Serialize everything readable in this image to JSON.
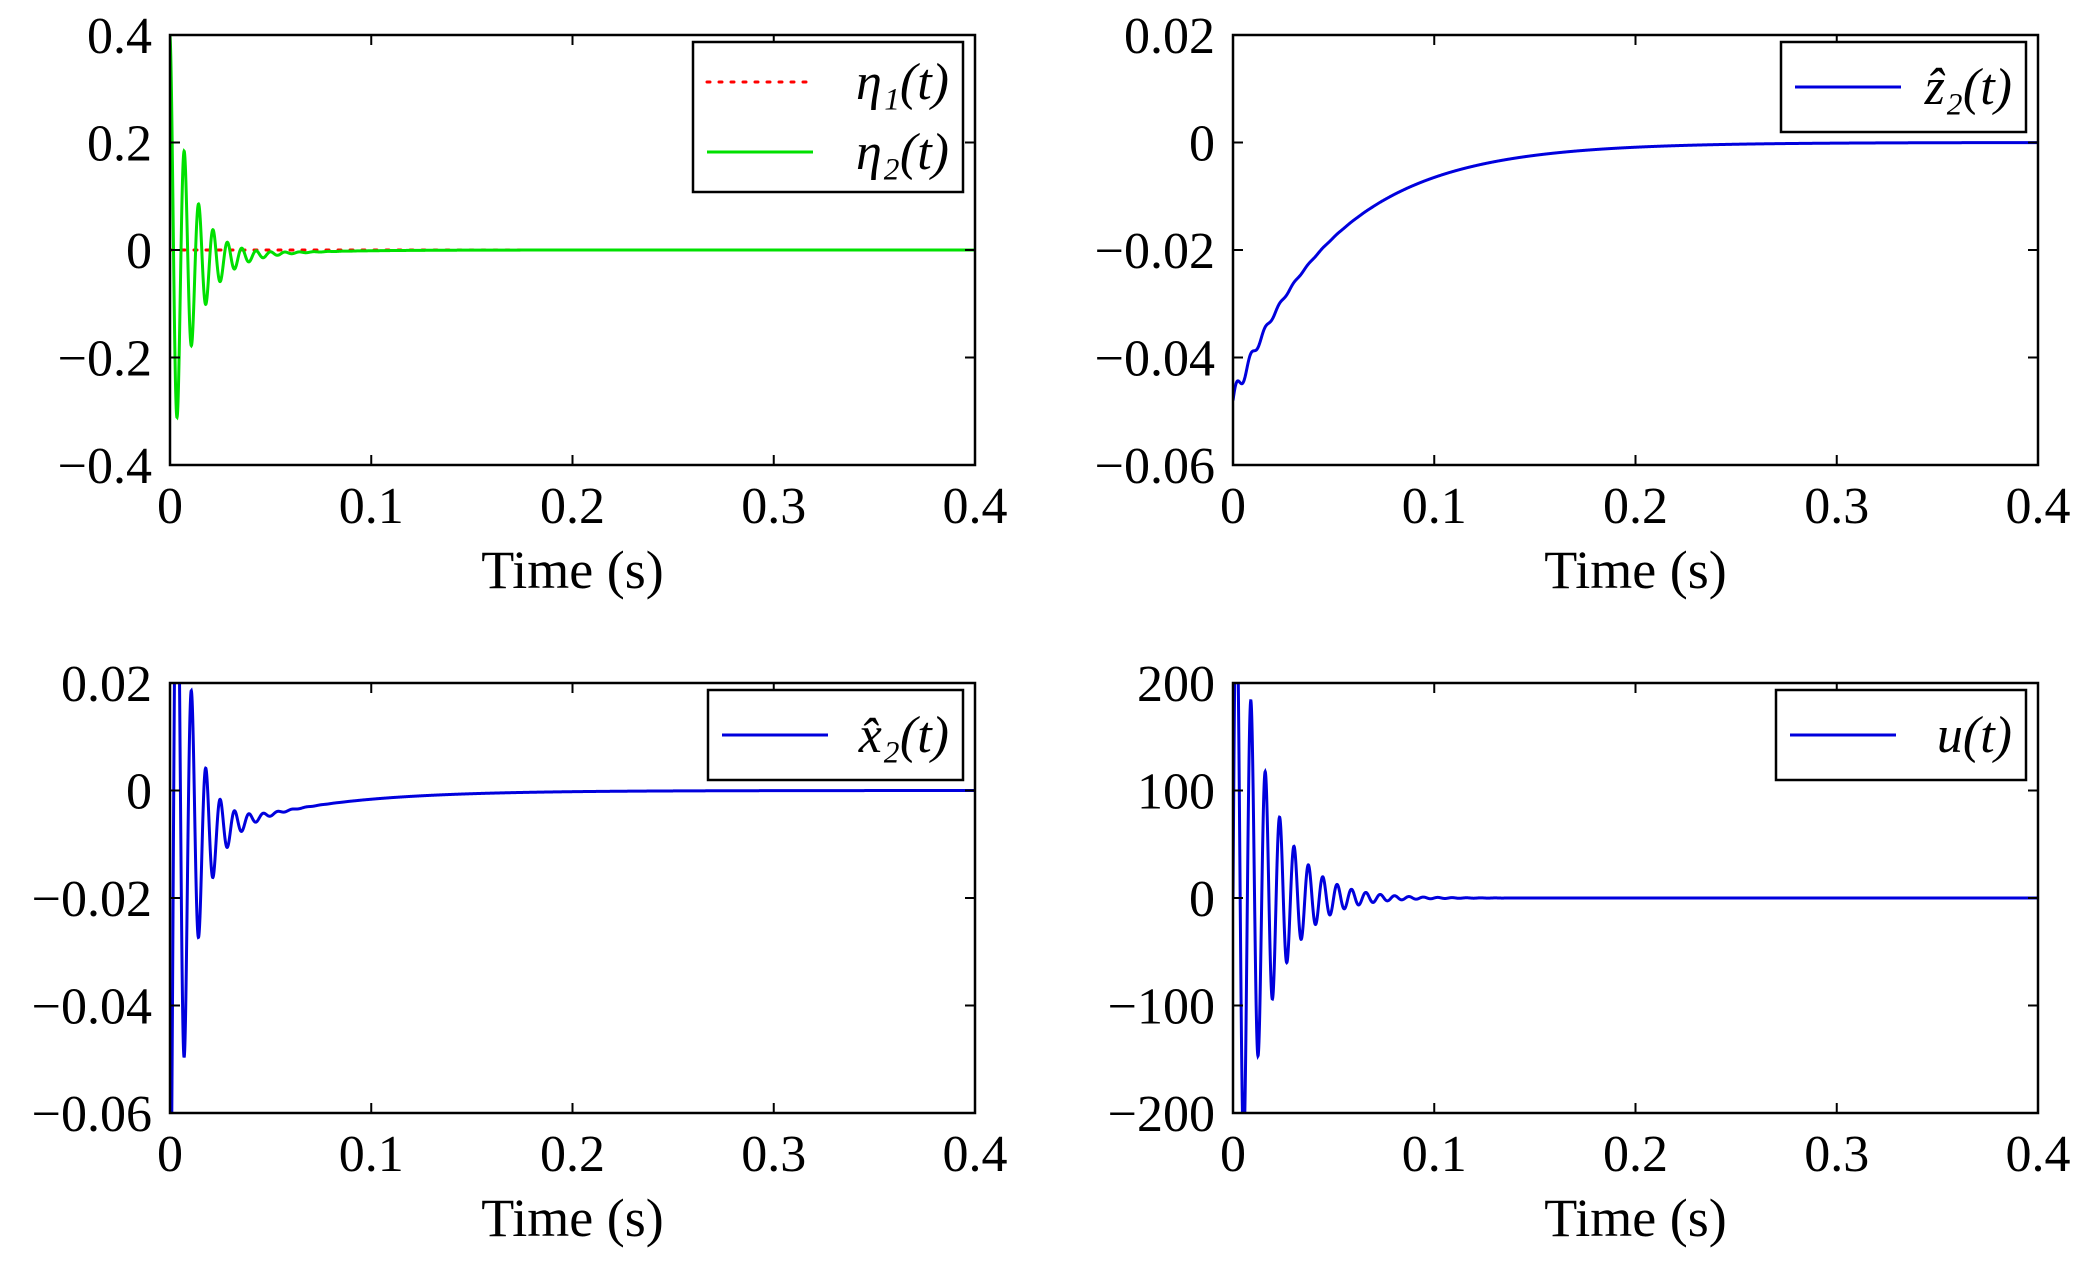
{
  "figure": {
    "background": "#ffffff"
  },
  "chart_data": [
    {
      "id": "eta",
      "type": "line",
      "title": "",
      "xlabel": "Time (s)",
      "ylabel": "",
      "xlim": [
        0,
        0.4
      ],
      "ylim": [
        -0.4,
        0.4
      ],
      "xticks": [
        0,
        0.1,
        0.2,
        0.3,
        0.4
      ],
      "xtick_labels": [
        "0",
        "0.1",
        "0.2",
        "0.3",
        "0.4"
      ],
      "yticks": [
        0.4,
        0.2,
        0,
        -0.2,
        -0.4
      ],
      "ytick_labels": [
        "0.4",
        "0.2",
        "0",
        "−0.2",
        "−0.4"
      ],
      "grid": false,
      "legend_position": "top-right",
      "series": [
        {
          "name": "η₁(t)",
          "color": "#ff0000",
          "style": "dotted",
          "model": {
            "kind": "decay",
            "a0": 0.0,
            "tau": 0.04
          }
        },
        {
          "name": "η₂(t)",
          "color": "#00e000",
          "style": "solid",
          "model": {
            "kind": "osc",
            "a0": 0.4,
            "tau": 0.011,
            "freq": 140,
            "offset_amp": -0.04,
            "offset_tau": 0.03
          }
        }
      ]
    },
    {
      "id": "z2hat",
      "type": "line",
      "title": "",
      "xlabel": "Time (s)",
      "ylabel": "",
      "xlim": [
        0,
        0.4
      ],
      "ylim": [
        -0.06,
        0.02
      ],
      "xticks": [
        0,
        0.1,
        0.2,
        0.3,
        0.4
      ],
      "xtick_labels": [
        "0",
        "0.1",
        "0.2",
        "0.3",
        "0.4"
      ],
      "yticks": [
        0.02,
        0,
        -0.02,
        -0.04,
        -0.06
      ],
      "ytick_labels": [
        "0.02",
        "0",
        "−0.02",
        "−0.04",
        "−0.06"
      ],
      "grid": false,
      "legend_position": "top-right",
      "series": [
        {
          "name": "ẑ₂(t)",
          "color": "#0000dd",
          "style": "solid",
          "model": {
            "kind": "decay_ripple",
            "a0": -0.048,
            "tau": 0.05,
            "ripple": 0.002,
            "ripple_tau": 0.012,
            "freq": 140
          }
        }
      ]
    },
    {
      "id": "x2hat",
      "type": "line",
      "title": "",
      "xlabel": "Time (s)",
      "ylabel": "",
      "xlim": [
        0,
        0.4
      ],
      "ylim": [
        -0.06,
        0.02
      ],
      "xticks": [
        0,
        0.1,
        0.2,
        0.3,
        0.4
      ],
      "xtick_labels": [
        "0",
        "0.1",
        "0.2",
        "0.3",
        "0.4"
      ],
      "yticks": [
        0.02,
        0,
        -0.02,
        -0.04,
        -0.06
      ],
      "ytick_labels": [
        "0.02",
        "0",
        "−0.02",
        "−0.04",
        "−0.06"
      ],
      "grid": false,
      "legend_position": "top-right",
      "series": [
        {
          "name": "x̂₂(t)",
          "color": "#0000dd",
          "style": "solid",
          "model": {
            "kind": "osc",
            "a0": -0.09,
            "tau": 0.009,
            "freq": 140,
            "offset_amp": -0.012,
            "offset_tau": 0.05
          }
        }
      ]
    },
    {
      "id": "u",
      "type": "line",
      "title": "",
      "xlabel": "Time (s)",
      "ylabel": "",
      "xlim": [
        0,
        0.4
      ],
      "ylim": [
        -200,
        200
      ],
      "xticks": [
        0,
        0.1,
        0.2,
        0.3,
        0.4
      ],
      "xtick_labels": [
        "0",
        "0.1",
        "0.2",
        "0.3",
        "0.4"
      ],
      "yticks": [
        200,
        100,
        0,
        -100,
        -200
      ],
      "ytick_labels": [
        "200",
        "100",
        "0",
        "−100",
        "−200"
      ],
      "grid": false,
      "legend_position": "top-right",
      "series": [
        {
          "name": "u(t)",
          "color": "#0000dd",
          "style": "solid",
          "model": {
            "kind": "osc_sin",
            "a0": 320,
            "tau": 0.016,
            "freq": 140
          }
        }
      ]
    }
  ]
}
